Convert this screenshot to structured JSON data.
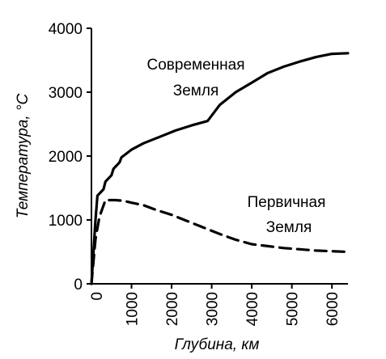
{
  "chart_data": {
    "type": "line",
    "title": "",
    "xlabel": "Глубина, км",
    "ylabel": "Температура, °C",
    "xlim": [
      0,
      6400
    ],
    "ylim": [
      0,
      4000
    ],
    "x_ticks": [
      1000,
      2000,
      3000,
      4000,
      5000,
      6000
    ],
    "x_tick_labels": [
      "1000",
      "2000",
      "3000",
      "4000",
      "5000",
      "6000"
    ],
    "y_ticks": [
      0,
      1000,
      2000,
      3000,
      4000
    ],
    "y_tick_labels": [
      "0",
      "1000",
      "2000",
      "3000",
      "4000"
    ],
    "x_zero_label": "0",
    "grid": false,
    "annotations": [
      {
        "lines": [
          "Современная",
          "Земля"
        ],
        "series": "modern"
      },
      {
        "lines": [
          "Первичная",
          "Земля"
        ],
        "series": "primordial"
      }
    ],
    "series": [
      {
        "id": "modern",
        "style": "solid",
        "color": "#000000",
        "x": [
          0,
          100,
          150,
          300,
          350,
          500,
          550,
          700,
          750,
          1000,
          1300,
          1700,
          2100,
          2500,
          2900,
          3200,
          3600,
          4000,
          4400,
          4800,
          5200,
          5600,
          6000,
          6400
        ],
        "y": [
          0,
          1000,
          1380,
          1480,
          1600,
          1700,
          1800,
          1900,
          1980,
          2100,
          2200,
          2300,
          2400,
          2480,
          2550,
          2800,
          3000,
          3150,
          3300,
          3400,
          3480,
          3550,
          3600,
          3610
        ]
      },
      {
        "id": "primordial",
        "style": "dashed",
        "color": "#000000",
        "x": [
          0,
          100,
          200,
          350,
          600,
          800,
          1000,
          1300,
          1600,
          2000,
          2400,
          2800,
          3200,
          3600,
          4000,
          4400,
          4800,
          5200,
          5600,
          6000,
          6400
        ],
        "y": [
          0,
          700,
          1050,
          1310,
          1310,
          1300,
          1270,
          1230,
          1160,
          1080,
          980,
          880,
          780,
          690,
          620,
          590,
          560,
          540,
          520,
          510,
          500
        ]
      }
    ]
  }
}
